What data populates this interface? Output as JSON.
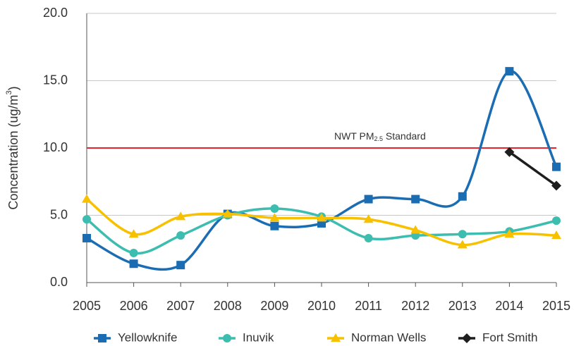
{
  "chart_data": {
    "type": "line",
    "y_label": [
      "Concentration (ug/m",
      "3",
      ")"
    ],
    "x": [
      2005,
      2006,
      2007,
      2008,
      2009,
      2010,
      2011,
      2012,
      2013,
      2014,
      2015
    ],
    "xlim": [
      2005,
      2015
    ],
    "xticks": [
      2005,
      2006,
      2007,
      2008,
      2009,
      2010,
      2011,
      2012,
      2013,
      2014,
      2015
    ],
    "ylim": [
      0,
      20
    ],
    "yticks": [
      {
        "value": 0,
        "label": "0.0"
      },
      {
        "value": 5,
        "label": "5.0"
      },
      {
        "value": 10,
        "label": "10.0"
      },
      {
        "value": 15,
        "label": "15.0"
      },
      {
        "value": 20,
        "label": "20.0"
      }
    ],
    "grid": true,
    "smooth": true,
    "legend": "bottom",
    "reference_line": {
      "value": 10,
      "color": "#e8232d",
      "label": [
        "NWT PM",
        "2.5",
        " Standard"
      ]
    },
    "series": [
      {
        "name": "Yellowknife",
        "color": "#1b6db3",
        "marker": "square",
        "values": [
          3.3,
          1.4,
          1.3,
          5.1,
          4.2,
          4.4,
          6.2,
          6.2,
          6.4,
          15.7,
          8.6
        ]
      },
      {
        "name": "Inuvik",
        "color": "#3dbdb0",
        "marker": "circle",
        "values": [
          4.7,
          2.2,
          3.5,
          5.0,
          5.5,
          4.9,
          3.3,
          3.5,
          3.6,
          3.8,
          4.6
        ]
      },
      {
        "name": "Norman Wells",
        "color": "#f7c100",
        "marker": "triangle",
        "values": [
          6.2,
          3.6,
          4.9,
          5.1,
          4.8,
          4.8,
          4.7,
          3.9,
          2.8,
          3.6,
          3.5
        ]
      },
      {
        "name": "Fort Smith",
        "color": "#1e1e1e",
        "marker": "diamond",
        "values": [
          null,
          null,
          null,
          null,
          null,
          null,
          null,
          null,
          null,
          9.7,
          7.2
        ]
      }
    ]
  }
}
